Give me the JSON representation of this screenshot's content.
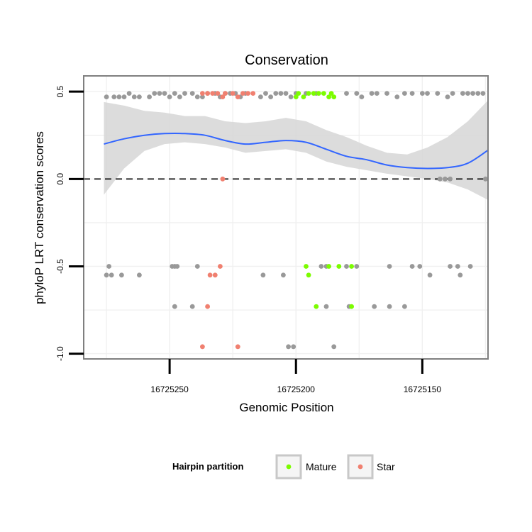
{
  "chart_data": {
    "type": "scatter",
    "title": "Conservation",
    "xlabel": "Genomic Position",
    "ylabel": "phyloP LRT conservation scores",
    "x_reversed": true,
    "xlim": [
      16725284,
      16725124
    ],
    "ylim": [
      -1.03,
      0.59
    ],
    "x_ticks": [
      16725250,
      16725200,
      16725150
    ],
    "x_tick_labels": [
      "16725250",
      "16725200",
      "16725150"
    ],
    "y_ticks": [
      -1.0,
      -0.5,
      0.0,
      0.5
    ],
    "y_tick_labels": [
      "-1.0",
      "-0.5",
      "0.0",
      "0.5"
    ],
    "reference_line": {
      "y": 0.0,
      "style": "dashed"
    },
    "legend": {
      "title": "Hairpin partition",
      "position": "bottom",
      "entries": [
        {
          "label": "Mature",
          "color": "#7cfc00"
        },
        {
          "label": "Star",
          "color": "#f08070"
        }
      ]
    },
    "colors": {
      "Other": "#999999",
      "Mature": "#7cfc00",
      "Star": "#f08070",
      "smooth": "#3366ff",
      "band": "#d6d6d6"
    },
    "series": [
      {
        "name": "Other",
        "points": [
          [
            16725275,
            0.47
          ],
          [
            16725272,
            0.47
          ],
          [
            16725270,
            0.47
          ],
          [
            16725268,
            0.47
          ],
          [
            16725266,
            0.49
          ],
          [
            16725264,
            0.47
          ],
          [
            16725262,
            0.47
          ],
          [
            16725258,
            0.47
          ],
          [
            16725256,
            0.49
          ],
          [
            16725254,
            0.49
          ],
          [
            16725252,
            0.49
          ],
          [
            16725250,
            0.47
          ],
          [
            16725248,
            0.49
          ],
          [
            16725246,
            0.47
          ],
          [
            16725244,
            0.49
          ],
          [
            16725241,
            0.49
          ],
          [
            16725239,
            0.47
          ],
          [
            16725237,
            0.47
          ],
          [
            16725235,
            0.49
          ],
          [
            16725232,
            0.49
          ],
          [
            16725230,
            0.47
          ],
          [
            16725228,
            0.49
          ],
          [
            16725226,
            0.49
          ],
          [
            16725224,
            0.49
          ],
          [
            16725222,
            0.47
          ],
          [
            16725220,
            0.49
          ],
          [
            16725214,
            0.47
          ],
          [
            16725212,
            0.49
          ],
          [
            16725210,
            0.47
          ],
          [
            16725208,
            0.49
          ],
          [
            16725206,
            0.49
          ],
          [
            16725204,
            0.49
          ],
          [
            16725202,
            0.47
          ],
          [
            16725200,
            0.49
          ],
          [
            16725196,
            0.49
          ],
          [
            16725192,
            0.49
          ],
          [
            16725180,
            0.49
          ],
          [
            16725176,
            0.49
          ],
          [
            16725174,
            0.47
          ],
          [
            16725170,
            0.49
          ],
          [
            16725168,
            0.49
          ],
          [
            16725164,
            0.49
          ],
          [
            16725160,
            0.47
          ],
          [
            16725157,
            0.49
          ],
          [
            16725154,
            0.49
          ],
          [
            16725150,
            0.49
          ],
          [
            16725148,
            0.49
          ],
          [
            16725144,
            0.49
          ],
          [
            16725140,
            0.47
          ],
          [
            16725138,
            0.49
          ],
          [
            16725134,
            0.49
          ],
          [
            16725132,
            0.49
          ],
          [
            16725130,
            0.49
          ],
          [
            16725128,
            0.49
          ],
          [
            16725126,
            0.49
          ],
          [
            16725143,
            0.0
          ],
          [
            16725141,
            0.0
          ],
          [
            16725139,
            0.0
          ],
          [
            16725125,
            0.0
          ],
          [
            16725274,
            -0.5
          ],
          [
            16725275,
            -0.55
          ],
          [
            16725273,
            -0.55
          ],
          [
            16725269,
            -0.55
          ],
          [
            16725262,
            -0.55
          ],
          [
            16725249,
            -0.5
          ],
          [
            16725248,
            -0.5
          ],
          [
            16725247,
            -0.5
          ],
          [
            16725239,
            -0.5
          ],
          [
            16725213,
            -0.55
          ],
          [
            16725205,
            -0.55
          ],
          [
            16725190,
            -0.5
          ],
          [
            16725188,
            -0.5
          ],
          [
            16725180,
            -0.5
          ],
          [
            16725176,
            -0.5
          ],
          [
            16725163,
            -0.5
          ],
          [
            16725154,
            -0.5
          ],
          [
            16725151,
            -0.5
          ],
          [
            16725147,
            -0.55
          ],
          [
            16725139,
            -0.5
          ],
          [
            16725136,
            -0.5
          ],
          [
            16725135,
            -0.55
          ],
          [
            16725131,
            -0.5
          ],
          [
            16725248,
            -0.73
          ],
          [
            16725241,
            -0.73
          ],
          [
            16725188,
            -0.73
          ],
          [
            16725179,
            -0.73
          ],
          [
            16725169,
            -0.73
          ],
          [
            16725163,
            -0.73
          ],
          [
            16725157,
            -0.73
          ],
          [
            16725203,
            -0.96
          ],
          [
            16725201,
            -0.96
          ],
          [
            16725185,
            -0.96
          ]
        ]
      },
      {
        "name": "Mature",
        "points": [
          [
            16725200,
            0.47
          ],
          [
            16725199,
            0.49
          ],
          [
            16725197,
            0.47
          ],
          [
            16725195,
            0.49
          ],
          [
            16725193,
            0.49
          ],
          [
            16725191,
            0.49
          ],
          [
            16725189,
            0.49
          ],
          [
            16725187,
            0.47
          ],
          [
            16725186,
            0.49
          ],
          [
            16725185,
            0.47
          ],
          [
            16725196,
            -0.5
          ],
          [
            16725195,
            -0.55
          ],
          [
            16725192,
            -0.73
          ],
          [
            16725187,
            -0.5
          ],
          [
            16725183,
            -0.5
          ],
          [
            16725178,
            -0.73
          ],
          [
            16725178,
            -0.5
          ]
        ]
      },
      {
        "name": "Star",
        "points": [
          [
            16725237,
            0.49
          ],
          [
            16725235,
            0.49
          ],
          [
            16725233,
            0.49
          ],
          [
            16725231,
            0.49
          ],
          [
            16725229,
            0.47
          ],
          [
            16725228,
            0.49
          ],
          [
            16725225,
            0.49
          ],
          [
            16725223,
            0.47
          ],
          [
            16725221,
            0.49
          ],
          [
            16725219,
            0.49
          ],
          [
            16725217,
            0.49
          ],
          [
            16725229,
            0.0
          ],
          [
            16725234,
            -0.55
          ],
          [
            16725232,
            -0.55
          ],
          [
            16725230,
            -0.5
          ],
          [
            16725235,
            -0.73
          ],
          [
            16725237,
            -0.96
          ],
          [
            16725223,
            -0.96
          ]
        ]
      }
    ],
    "smooth": {
      "x": [
        16725276,
        16725268,
        16725260,
        16725252,
        16725244,
        16725236,
        16725228,
        16725220,
        16725212,
        16725204,
        16725196,
        16725188,
        16725180,
        16725172,
        16725164,
        16725156,
        16725148,
        16725140,
        16725132,
        16725124
      ],
      "y": [
        0.2,
        0.23,
        0.25,
        0.26,
        0.26,
        0.25,
        0.22,
        0.2,
        0.21,
        0.22,
        0.21,
        0.17,
        0.13,
        0.11,
        0.08,
        0.065,
        0.06,
        0.065,
        0.09,
        0.165
      ],
      "lower": [
        -0.09,
        0.06,
        0.16,
        0.2,
        0.21,
        0.2,
        0.18,
        0.15,
        0.16,
        0.17,
        0.15,
        0.1,
        0.07,
        0.05,
        0.03,
        0.015,
        0.0,
        -0.02,
        -0.06,
        -0.12
      ],
      "upper": [
        0.44,
        0.42,
        0.39,
        0.38,
        0.36,
        0.36,
        0.33,
        0.32,
        0.33,
        0.35,
        0.33,
        0.28,
        0.24,
        0.19,
        0.15,
        0.14,
        0.18,
        0.24,
        0.33,
        0.45
      ]
    }
  }
}
